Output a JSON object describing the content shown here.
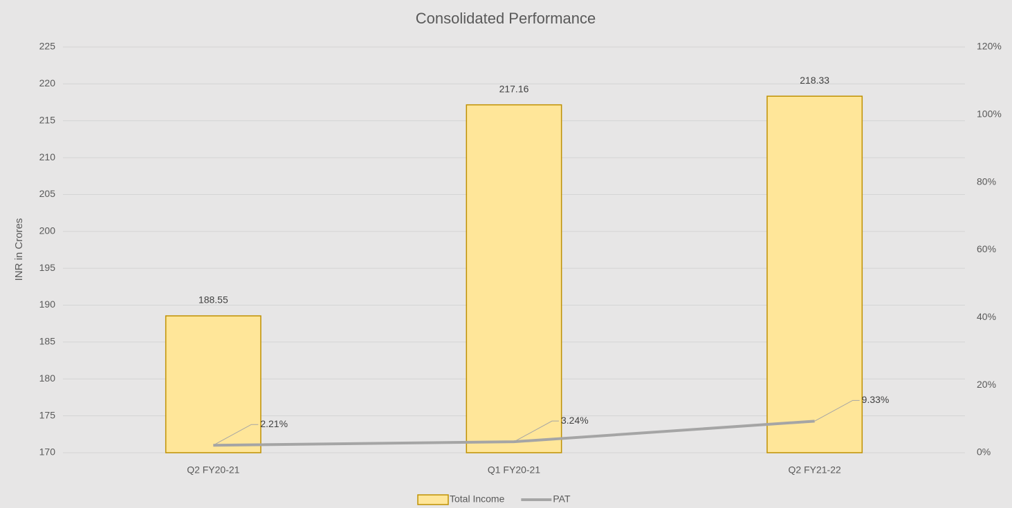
{
  "chart_data": {
    "type": "bar",
    "title": "Consolidated Performance",
    "y_axis_label": "INR in Crores",
    "categories": [
      "Q2 FY20-21",
      "Q1 FY20-21",
      "Q2 FY21-22"
    ],
    "series": [
      {
        "name": "Total Income",
        "type": "bar",
        "color": "#ffe699",
        "edge_color": "#bf9000",
        "values": [
          188.55,
          217.16,
          218.33
        ]
      },
      {
        "name": "PAT",
        "type": "line",
        "axis": "y2",
        "color": "#a5a5a5",
        "values": [
          2.21,
          3.24,
          9.33
        ],
        "value_labels": [
          "2.21%",
          "3.24%",
          "9.33%"
        ]
      }
    ],
    "ylim": [
      170,
      225
    ],
    "yticks": [
      170,
      175,
      180,
      185,
      190,
      195,
      200,
      205,
      210,
      215,
      220,
      225
    ],
    "y2lim": [
      0,
      120
    ],
    "y2ticks": [
      {
        "value": 0,
        "label": "0%"
      },
      {
        "value": 20,
        "label": "20%"
      },
      {
        "value": 40,
        "label": "40%"
      },
      {
        "value": 60,
        "label": "60%"
      },
      {
        "value": 80,
        "label": "80%"
      },
      {
        "value": 100,
        "label": "100%"
      },
      {
        "value": 120,
        "label": "120%"
      }
    ],
    "grid": true,
    "legend": "bottom"
  }
}
